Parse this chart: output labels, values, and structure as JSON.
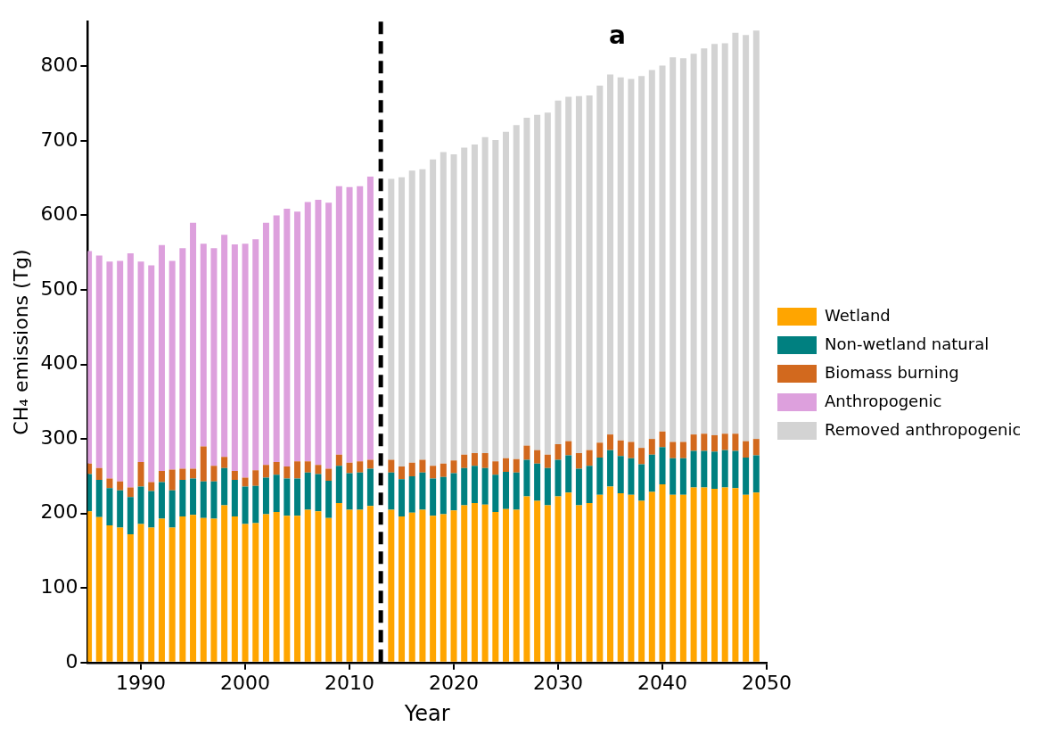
{
  "chart_data": {
    "type": "bar",
    "stacked": true,
    "xlabel": "Year",
    "ylabel": "CH₄ emissions (Tg)",
    "annotations": [
      "a"
    ],
    "x": [
      1985,
      1986,
      1987,
      1988,
      1989,
      1990,
      1991,
      1992,
      1993,
      1994,
      1995,
      1996,
      1997,
      1998,
      1999,
      2000,
      2001,
      2002,
      2003,
      2004,
      2005,
      2006,
      2007,
      2008,
      2009,
      2010,
      2011,
      2012,
      2013,
      2014,
      2015,
      2016,
      2017,
      2018,
      2019,
      2020,
      2021,
      2022,
      2023,
      2024,
      2025,
      2026,
      2027,
      2028,
      2029,
      2030,
      2031,
      2032,
      2033,
      2034,
      2035,
      2036,
      2037,
      2038,
      2039,
      2040,
      2041,
      2042,
      2043,
      2044,
      2045,
      2046,
      2047,
      2048,
      2049
    ],
    "xlim": [
      1984.9,
      2050
    ],
    "xticks": [
      1990,
      2000,
      2010,
      2020,
      2030,
      2040,
      2050
    ],
    "ylim": [
      0,
      860
    ],
    "yticks": [
      0,
      100,
      200,
      300,
      400,
      500,
      600,
      700,
      800
    ],
    "grid": false,
    "legend": "right",
    "ref_lines": [
      {
        "axis": "x",
        "value": 2013,
        "color": "#000000",
        "line_style": "dashed"
      }
    ],
    "series": [
      {
        "name": "Wetland",
        "color": "#ffa500",
        "values": [
          203,
          195,
          184,
          181,
          172,
          186,
          181,
          193,
          181,
          196,
          198,
          194,
          193,
          211,
          196,
          186,
          187,
          199,
          202,
          197,
          197,
          205,
          203,
          194,
          214,
          205,
          205,
          210,
          null,
          205,
          196,
          201,
          205,
          197,
          199,
          204,
          211,
          214,
          212,
          202,
          206,
          205,
          223,
          217,
          211,
          223,
          228,
          211,
          214,
          225,
          236,
          227,
          225,
          217,
          229,
          239,
          225,
          225,
          235,
          235,
          233,
          235,
          234,
          225,
          228
        ]
      },
      {
        "name": "Non-wetland natural",
        "color": "#008080",
        "values": [
          50,
          50,
          50,
          50,
          50,
          50,
          49,
          49,
          50,
          49,
          49,
          49,
          50,
          50,
          49,
          50,
          50,
          49,
          50,
          50,
          50,
          50,
          50,
          50,
          50,
          49,
          50,
          50,
          null,
          50,
          50,
          49,
          50,
          50,
          50,
          50,
          50,
          50,
          49,
          50,
          50,
          50,
          49,
          50,
          50,
          49,
          50,
          49,
          50,
          50,
          49,
          50,
          49,
          49,
          50,
          50,
          49,
          49,
          49,
          49,
          50,
          50,
          50,
          50,
          50
        ]
      },
      {
        "name": "Biomass burning",
        "color": "#d2691e",
        "values": [
          14,
          16,
          13,
          12,
          13,
          33,
          12,
          15,
          28,
          15,
          13,
          47,
          21,
          15,
          12,
          12,
          21,
          17,
          17,
          16,
          23,
          15,
          12,
          16,
          15,
          14,
          15,
          12,
          null,
          17,
          17,
          18,
          17,
          17,
          18,
          17,
          18,
          17,
          20,
          18,
          18,
          18,
          19,
          18,
          18,
          21,
          19,
          21,
          21,
          20,
          21,
          21,
          22,
          22,
          21,
          21,
          22,
          22,
          22,
          23,
          22,
          22,
          23,
          22,
          22
        ]
      },
      {
        "name": "Anthropogenic",
        "color": "#dda0dd",
        "values": [
          285,
          285,
          291,
          296,
          314,
          269,
          291,
          303,
          280,
          296,
          330,
          272,
          292,
          298,
          304,
          314,
          310,
          325,
          331,
          346,
          335,
          348,
          356,
          357,
          360,
          370,
          369,
          380,
          null,
          null,
          null,
          null,
          null,
          null,
          null,
          null,
          null,
          null,
          null,
          null,
          null,
          null,
          null,
          null,
          null,
          null,
          null,
          null,
          null,
          null,
          null,
          null,
          null,
          null,
          null,
          null,
          null,
          null,
          null,
          null,
          null,
          null,
          null,
          null,
          null
        ]
      },
      {
        "name": "Removed anthropogenic",
        "color": "#d3d3d3",
        "values": [
          null,
          null,
          null,
          null,
          null,
          null,
          null,
          null,
          null,
          null,
          null,
          null,
          null,
          null,
          null,
          null,
          null,
          null,
          null,
          null,
          null,
          null,
          null,
          null,
          null,
          null,
          null,
          null,
          null,
          377,
          388,
          392,
          390,
          411,
          418,
          411,
          412,
          414,
          424,
          431,
          438,
          448,
          440,
          450,
          459,
          461,
          462,
          479,
          476,
          479,
          483,
          487,
          487,
          499,
          495,
          491,
          516,
          515,
          511,
          517,
          525,
          524,
          538,
          545,
          548
        ]
      }
    ]
  }
}
